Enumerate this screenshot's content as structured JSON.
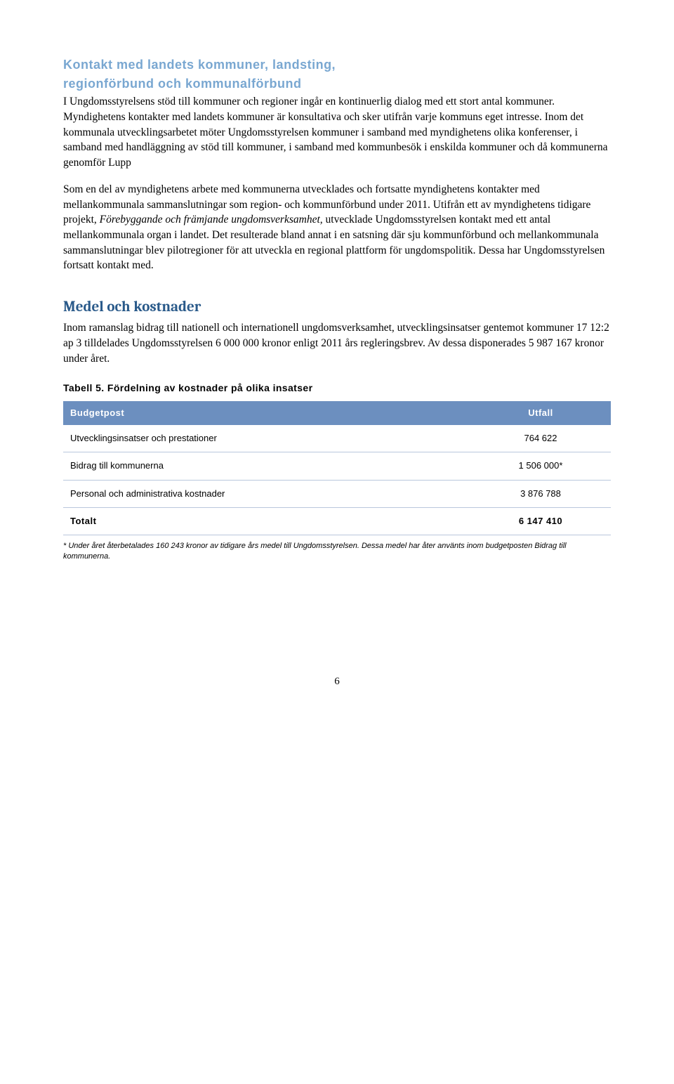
{
  "section1": {
    "heading_line1": "Kontakt med landets kommuner, landsting,",
    "heading_line2": "regionförbund och kommunalförbund",
    "para1": "I Ungdomsstyrelsens stöd till kommuner och regioner ingår en kontinuerlig dialog med ett stort antal kommuner. Myndighetens kontakter med landets kommuner är konsultativa och sker utifrån varje kommuns eget intresse. Inom det kommunala utvecklingsarbetet möter Ungdomsstyrelsen kommuner i samband med myndighetens olika konferenser, i samband med handläggning av stöd till kommuner, i samband med kommunbesök i enskilda kommuner och då kommunerna genomför Lupp",
    "para2_pre": "Som en del av myndighetens arbete med kommunerna utvecklades och fortsatte myndighetens kontakter med mellankommunala sammanslutningar som region- och kommunförbund under 2011. Utifrån ett av myndighetens tidigare projekt, ",
    "para2_italic": "Förebyggande och främjande ungdomsverksamhet,",
    "para2_post": " utvecklade Ungdomsstyrelsen kontakt med ett antal mellankommunala organ i landet. Det resulterade bland annat i en satsning där sju kommunförbund och mellankommunala sammanslutningar blev pilotregioner för att utveckla en regional plattform för ungdomspolitik. Dessa har Ungdomsstyrelsen fortsatt kontakt med."
  },
  "section2": {
    "heading": "Medel och kostnader",
    "para": "Inom ramanslag bidrag till nationell och internationell ungdomsverksamhet, utvecklingsinsatser gentemot kommuner 17 12:2 ap 3 tilldelades Ungdomsstyrelsen 6 000 000 kronor enligt 2011 års regleringsbrev. Av dessa disponerades 5 987 167 kronor under året."
  },
  "table": {
    "caption": "Tabell 5. Fördelning av kostnader på olika insatser",
    "head_col1": "Budgetpost",
    "head_col2": "Utfall",
    "rows": [
      {
        "label": "Utvecklingsinsatser och prestationer",
        "value": "764 622"
      },
      {
        "label": "Bidrag till kommunerna",
        "value": "1 506 000*"
      },
      {
        "label": "Personal och administrativa kostnader",
        "value": "3 876 788"
      }
    ],
    "total": {
      "label": "Totalt",
      "value": "6 147 410"
    }
  },
  "footnote": "* Under året återbetalades 160 243 kronor av tidigare års medel till Ungdomsstyrelsen. Dessa medel har åter använts inom budgetposten Bidrag till kommunerna.",
  "pageno": "6"
}
